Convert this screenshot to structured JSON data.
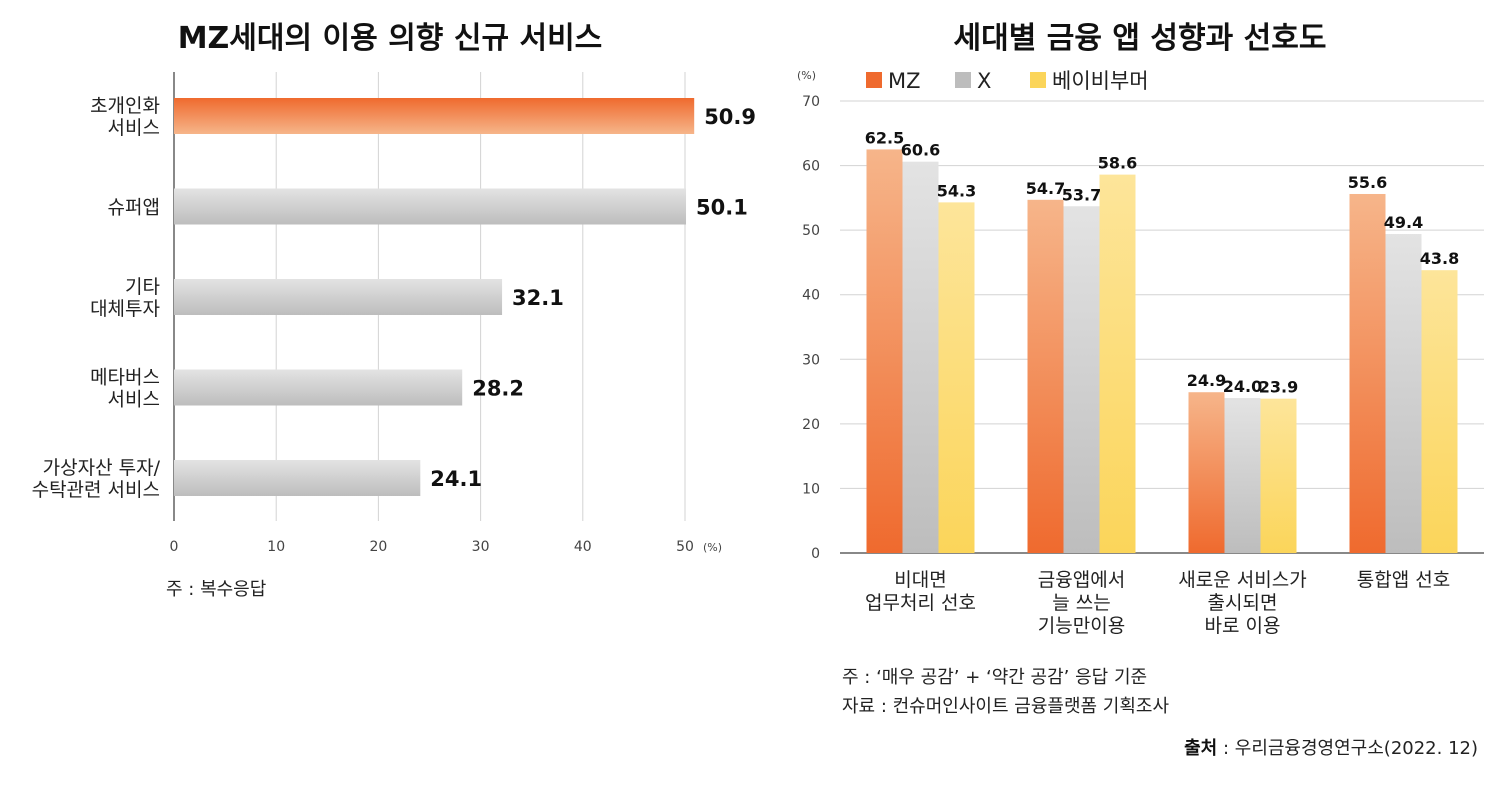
{
  "colors": {
    "mz_top": "#ef6a2e",
    "mz_bottom": "#f6b58a",
    "gray_top": "#e3e3e3",
    "gray_bottom": "#bdbdbd",
    "bb_top": "#fde59a",
    "bb_bottom": "#fbd55a",
    "axis": "#888888",
    "grid": "#d3d3d3"
  },
  "left": {
    "note": "주 : 복수응답"
  },
  "right": {
    "note1": "주 : ‘매우 공감’ + ‘약간 공감’ 응답 기준",
    "note2": "자료 : 컨슈머인사이트 금융플랫폼 기획조사",
    "source_bold": "출처",
    "source_rest": " : 우리금융경영연구소(2022. 12)"
  },
  "chart_data": [
    {
      "type": "bar",
      "orientation": "horizontal",
      "title": "MZ세대의 이용 의향 신규 서비스",
      "categories": [
        [
          "초개인화",
          "서비스"
        ],
        [
          "슈퍼앱"
        ],
        [
          "기타",
          "대체투자"
        ],
        [
          "메타버스",
          "서비스"
        ],
        [
          "가상자산 투자/",
          "수탁관련 서비스"
        ]
      ],
      "values": [
        50.9,
        50.1,
        32.1,
        28.2,
        24.1
      ],
      "value_labels": [
        "50.9",
        "50.1",
        "32.1",
        "28.2",
        "24.1"
      ],
      "highlight_index": 0,
      "xlim": [
        0,
        50
      ],
      "xticks": [
        "0",
        "10",
        "20",
        "30",
        "40",
        "50"
      ],
      "unit": "(%)",
      "grid": true
    },
    {
      "type": "bar",
      "title": "세대별 금융 앱 성향과 선호도",
      "categories": [
        [
          "비대면",
          "업무처리 선호"
        ],
        [
          "금융앱에서",
          "늘 쓰는",
          "기능만이용"
        ],
        [
          "새로운 서비스가",
          "출시되면",
          "바로 이용"
        ],
        [
          "통합앱 선호"
        ]
      ],
      "series": [
        {
          "name": "MZ",
          "values": [
            62.5,
            54.7,
            24.9,
            55.6
          ],
          "labels": [
            "62.5",
            "54.7",
            "24.9",
            "55.6"
          ]
        },
        {
          "name": "X",
          "values": [
            60.6,
            53.7,
            24.0,
            49.4
          ],
          "labels": [
            "60.6",
            "53.7",
            "24.0",
            "49.4"
          ]
        },
        {
          "name": "베이비부머",
          "values": [
            54.3,
            58.6,
            23.9,
            43.8
          ],
          "labels": [
            "54.3",
            "58.6",
            "23.9",
            "43.8"
          ]
        }
      ],
      "ylim": [
        0,
        70
      ],
      "yticks": [
        "0",
        "10",
        "20",
        "30",
        "40",
        "50",
        "60",
        "70"
      ],
      "unit": "(%)",
      "legend_position": "top-left",
      "grid": true
    }
  ]
}
